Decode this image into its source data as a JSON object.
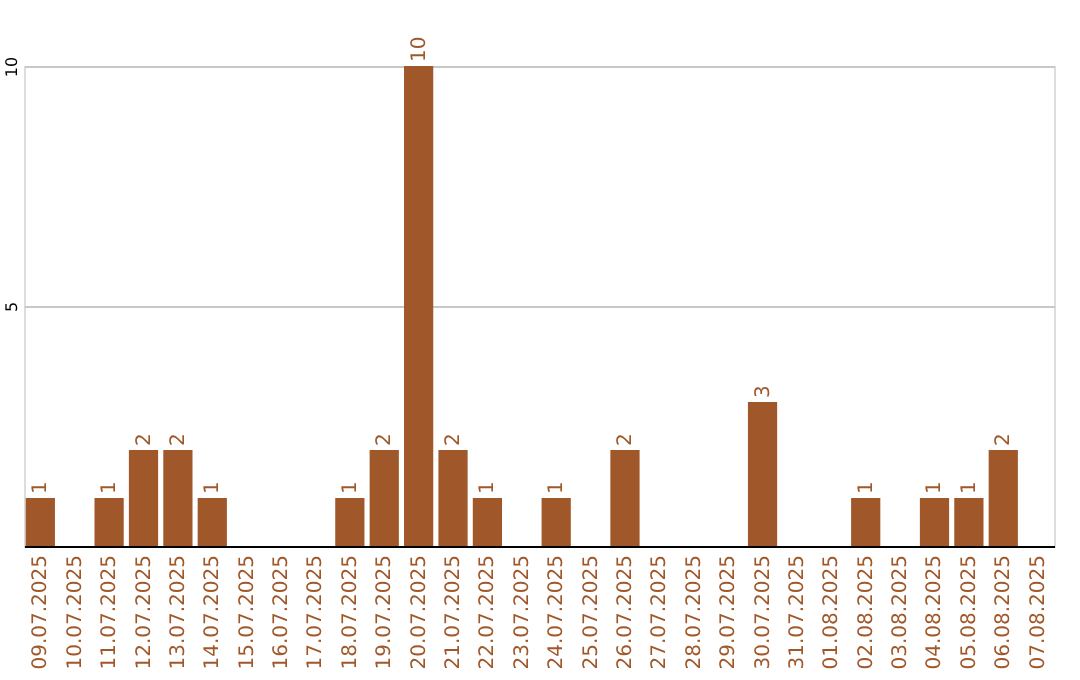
{
  "chart_data": {
    "type": "bar",
    "categories": [
      "09.07.2025",
      "10.07.2025",
      "11.07.2025",
      "12.07.2025",
      "13.07.2025",
      "14.07.2025",
      "15.07.2025",
      "16.07.2025",
      "17.07.2025",
      "18.07.2025",
      "19.07.2025",
      "20.07.2025",
      "21.07.2025",
      "22.07.2025",
      "23.07.2025",
      "24.07.2025",
      "25.07.2025",
      "26.07.2025",
      "27.07.2025",
      "28.07.2025",
      "29.07.2025",
      "30.07.2025",
      "31.07.2025",
      "01.08.2025",
      "02.08.2025",
      "03.08.2025",
      "04.08.2025",
      "05.08.2025",
      "06.08.2025",
      "07.08.2025"
    ],
    "values": [
      1,
      0,
      1,
      2,
      2,
      1,
      0,
      0,
      0,
      1,
      2,
      10,
      2,
      1,
      0,
      1,
      0,
      2,
      0,
      0,
      0,
      3,
      0,
      0,
      1,
      0,
      1,
      1,
      2,
      0
    ],
    "value_labels": [
      "1",
      null,
      "1",
      "2",
      "2",
      "1",
      null,
      null,
      null,
      "1",
      "2",
      "10",
      "2",
      "1",
      null,
      "1",
      null,
      "2",
      null,
      null,
      null,
      "3",
      null,
      null,
      "1",
      null,
      "1",
      "1",
      "2",
      null
    ],
    "color": "#a0582a",
    "ylim": [
      0,
      10
    ],
    "yticks": [
      {
        "value": 0,
        "label": null
      },
      5,
      10
    ],
    "grid": "y"
  }
}
